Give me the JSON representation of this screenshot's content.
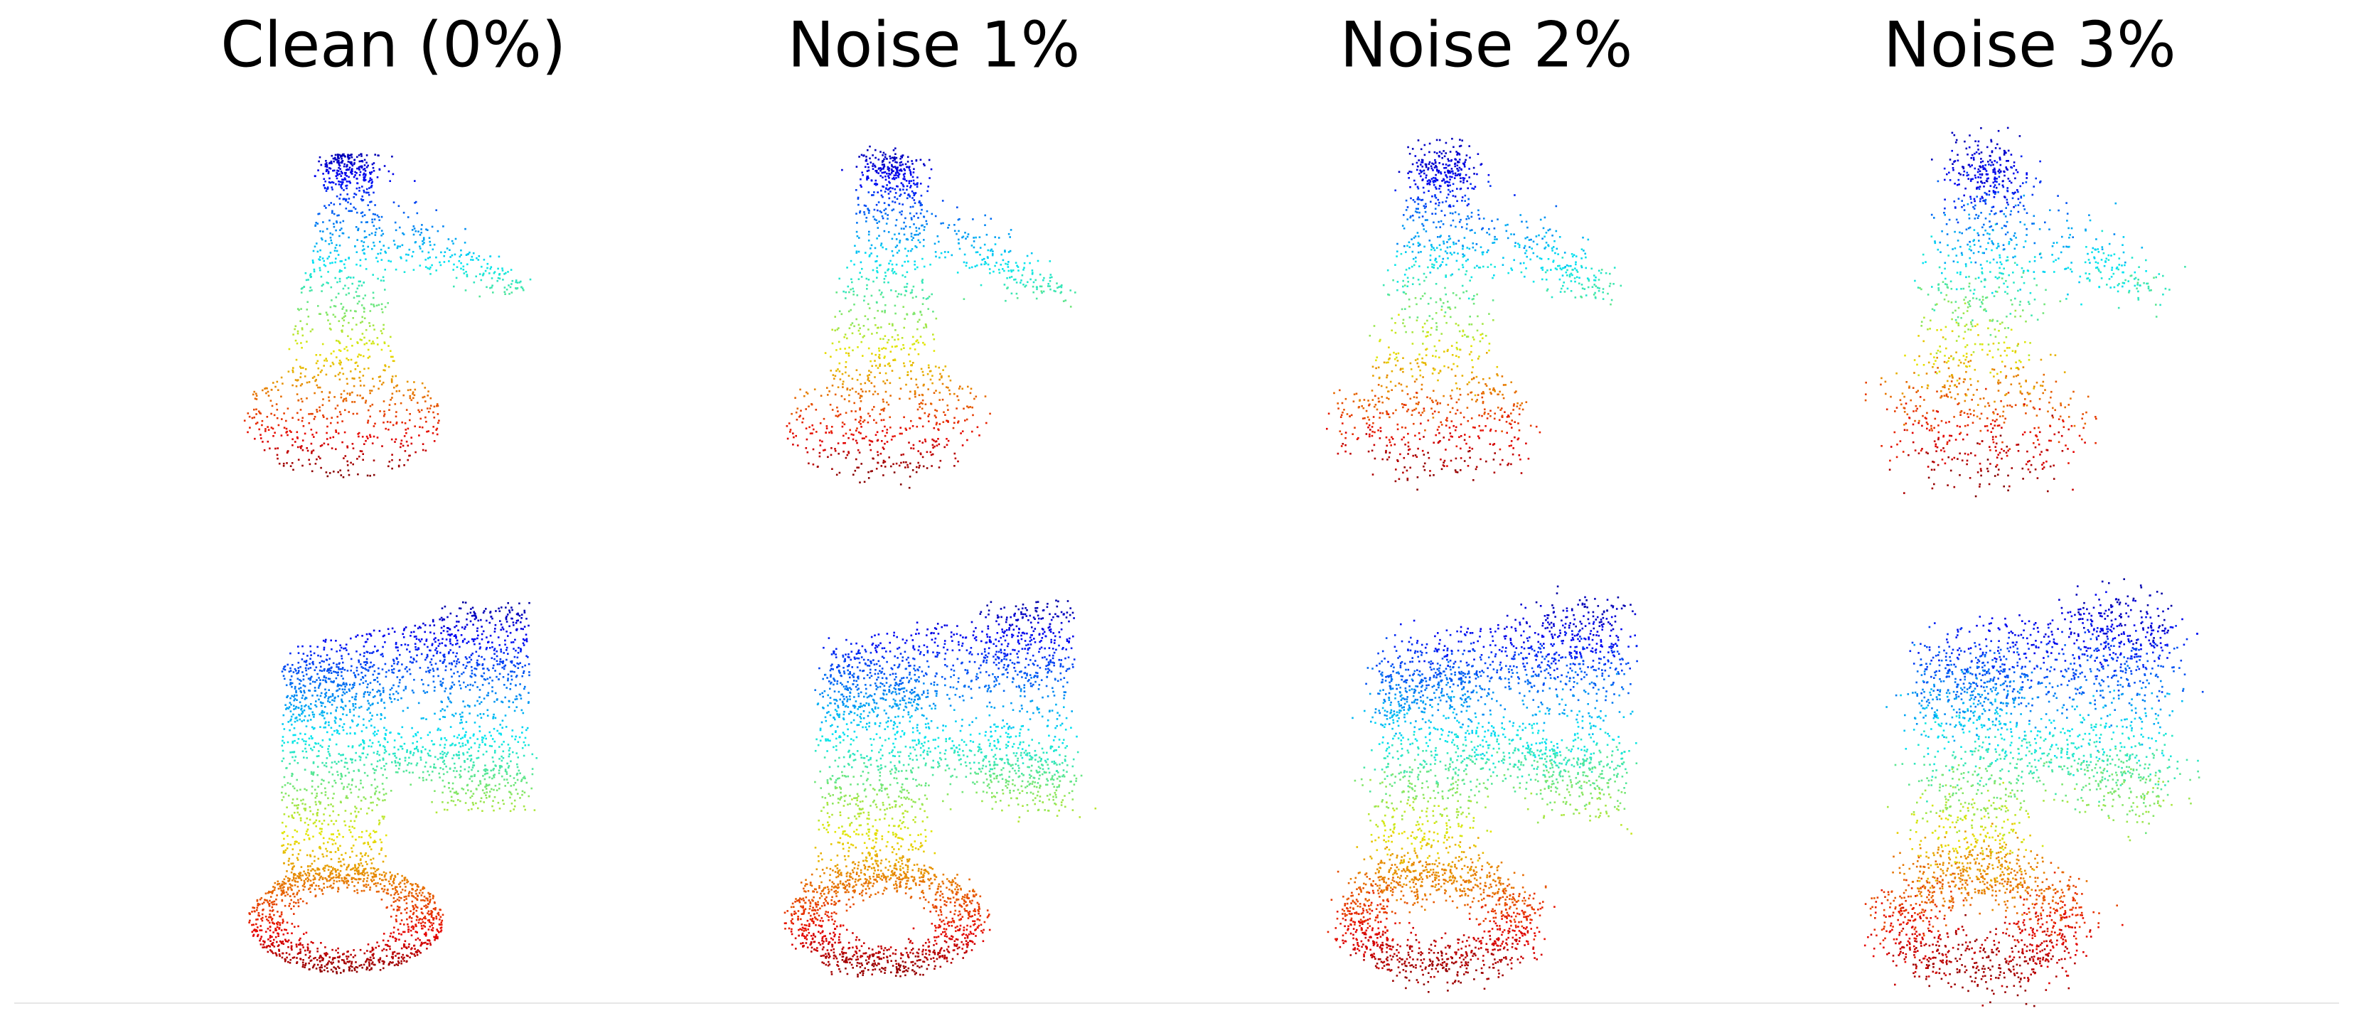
{
  "titles": [
    "Clean (0%)",
    "Noise 1%",
    "Noise 2%",
    "Noise 3%"
  ]
}
